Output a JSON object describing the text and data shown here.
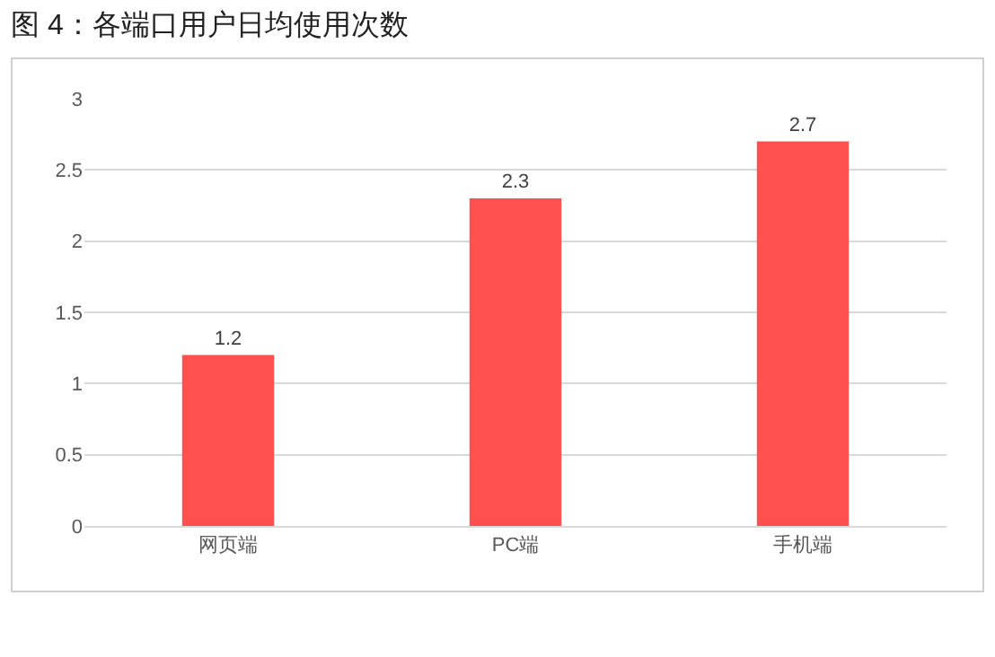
{
  "chart_data": {
    "type": "bar",
    "title": "图 4：各端口用户日均使用次数",
    "categories": [
      "网页端",
      "PC端",
      "手机端"
    ],
    "values": [
      1.2,
      2.3,
      2.7
    ],
    "color": "#ff5050",
    "ylim": [
      0,
      3
    ],
    "yticks": [
      0,
      0.5,
      1,
      1.5,
      2,
      2.5,
      3
    ],
    "grid": "y",
    "data_labels": true
  }
}
